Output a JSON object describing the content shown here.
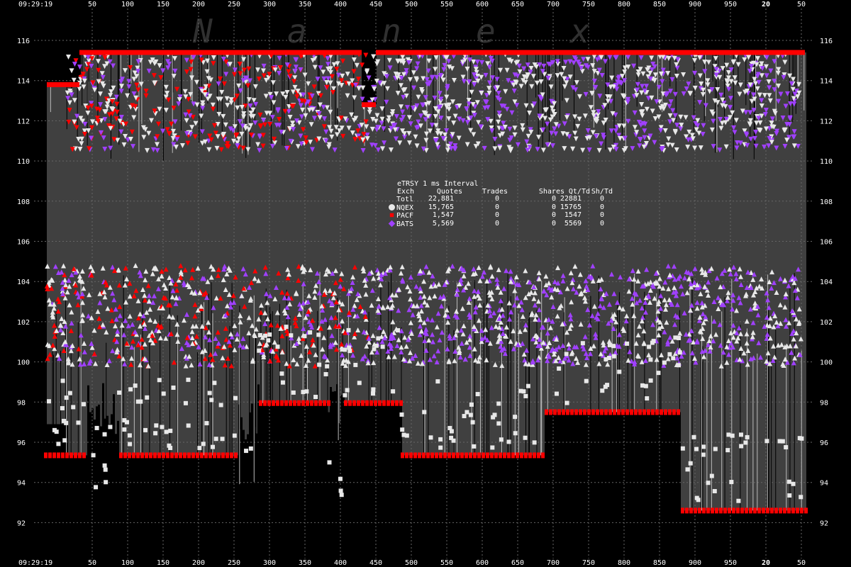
{
  "chart_data": {
    "type": "scatter",
    "title": "eTRSY 1 ms Interval",
    "time_start_label": "09:29:19",
    "x_ticks_top": [
      "50",
      "100",
      "150",
      "200",
      "250",
      "300",
      "350",
      "400",
      "450",
      "500",
      "550",
      "600",
      "650",
      "700",
      "750",
      "800",
      "850",
      "900",
      "950",
      "20",
      "50"
    ],
    "x_ticks_bottom": [
      "50",
      "100",
      "150",
      "200",
      "250",
      "300",
      "350",
      "400",
      "450",
      "500",
      "550",
      "600",
      "650",
      "700",
      "750",
      "800",
      "850",
      "900",
      "950",
      "20",
      "50"
    ],
    "y_ticks": [
      "116",
      "114",
      "112",
      "110",
      "108",
      "106",
      "104",
      "102",
      "100",
      "98",
      "96",
      "94",
      "92"
    ],
    "y_ticks_right": [
      "116",
      "114",
      "112",
      "110",
      "108",
      "106",
      "104",
      "102",
      "100",
      "98",
      "96",
      "94",
      "92"
    ],
    "ylim": [
      91,
      117
    ],
    "grid": true,
    "watermark": "Nanex",
    "legend": {
      "headers": [
        "Exch",
        "Quotes",
        "Trades",
        "Shares",
        "Qt/Td",
        "Sh/Td"
      ],
      "rows": [
        {
          "exch": "Totl",
          "quotes": "22,881",
          "trades": "0",
          "shares": "0",
          "qt_td": "22881",
          "sh_td": "0",
          "color": ""
        },
        {
          "exch": "NQEX",
          "quotes": "15,765",
          "trades": "0",
          "shares": "0",
          "qt_td": "15765",
          "sh_td": "0",
          "color": "#e8e8e8"
        },
        {
          "exch": "PACF",
          "quotes": "1,547",
          "trades": "0",
          "shares": "0",
          "qt_td": "1547",
          "sh_td": "0",
          "color": "#ff0000"
        },
        {
          "exch": "BATS",
          "quotes": "5,569",
          "trades": "0",
          "shares": "0",
          "qt_td": "5569",
          "sh_td": "0",
          "color": "#a040ff"
        }
      ]
    },
    "colors": {
      "background": "#000000",
      "spread_fill": "#404040",
      "nbbo_line": "#ff0000",
      "nqex": "#e8e8e8",
      "pacf": "#ff0000",
      "bats": "#a040ff",
      "grid": "#666666"
    },
    "nbbo_ask_segments": [
      {
        "x0": 0,
        "x1": 62,
        "y": 112.65
      },
      {
        "x0": 62,
        "x1": 112,
        "y": 113.8
      },
      {
        "x0": 112,
        "x1": 510,
        "y": 115.4
      },
      {
        "x0": 510,
        "x1": 530,
        "y": 112.8
      },
      {
        "x0": 530,
        "x1": 1135,
        "y": 115.4
      }
    ],
    "nbbo_bid_segments": [
      {
        "x0": 62,
        "x1": 122,
        "y": 95.35
      },
      {
        "x0": 168,
        "x1": 335,
        "y": 95.35
      },
      {
        "x0": 365,
        "x1": 462,
        "y": 97.95
      },
      {
        "x0": 485,
        "x1": 565,
        "y": 97.95
      },
      {
        "x0": 565,
        "x1": 768,
        "y": 95.35
      },
      {
        "x0": 768,
        "x1": 960,
        "y": 97.5
      },
      {
        "x0": 960,
        "x1": 1135,
        "y": 92.6
      }
    ]
  }
}
